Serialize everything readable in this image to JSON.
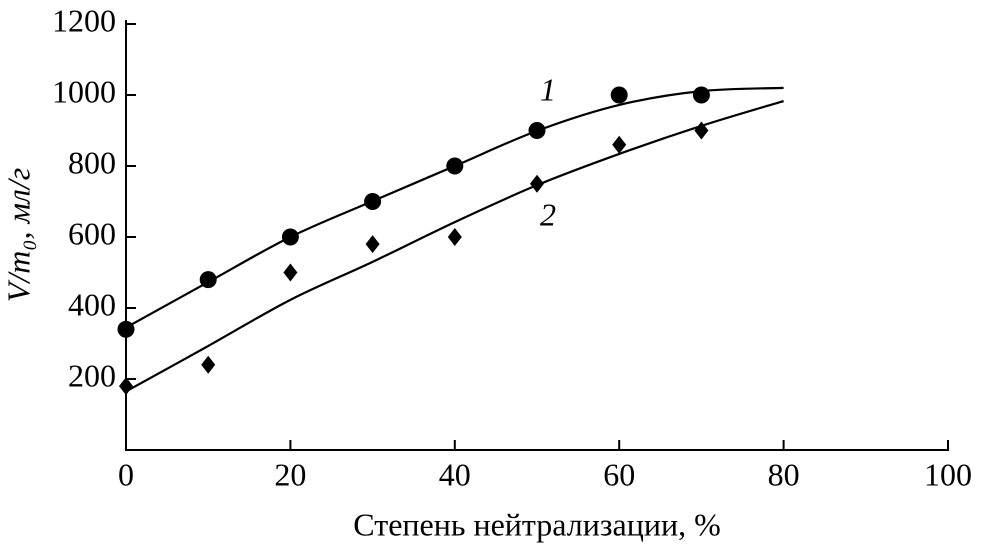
{
  "chart_data": {
    "type": "scatter",
    "x_label": "Степень нейтрализации, %",
    "y_label": "V/m₀, мл/г",
    "xlim": [
      0,
      100
    ],
    "ylim": [
      0,
      1200
    ],
    "xticks": [
      0,
      20,
      40,
      60,
      80,
      100
    ],
    "yticks": [
      200,
      400,
      600,
      800,
      1000,
      1200
    ],
    "x": [
      0,
      10,
      20,
      30,
      40,
      50,
      60,
      70
    ],
    "series": [
      {
        "name": "1",
        "color": "#000000",
        "marker": "circle",
        "values": [
          340,
          480,
          600,
          700,
          800,
          900,
          1000,
          1000
        ],
        "fit_x": [
          0,
          10,
          20,
          30,
          40,
          50,
          60,
          70,
          80
        ],
        "fit_values": [
          345,
          473,
          600,
          701,
          800,
          899,
          972,
          1011,
          1020
        ]
      },
      {
        "name": "2",
        "color": "#000000",
        "marker": "diamond",
        "values": [
          180,
          240,
          500,
          580,
          600,
          750,
          860,
          900
        ],
        "fit_x": [
          0,
          10,
          20,
          30,
          40,
          50,
          60,
          70,
          80
        ],
        "fit_values": [
          165,
          293,
          423,
          530,
          642,
          746,
          834,
          913,
          983
        ]
      }
    ]
  }
}
